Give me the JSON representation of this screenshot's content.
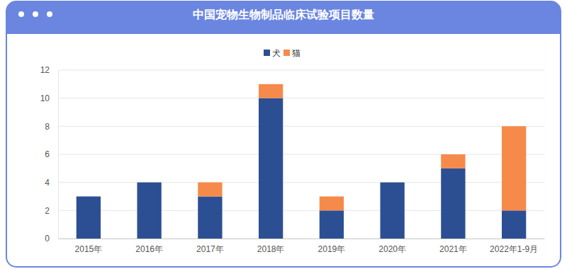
{
  "chart_data": {
    "type": "bar",
    "title": "中国宠物生物制品临床试验项目数量",
    "categories": [
      "2015年",
      "2016年",
      "2017年",
      "2018年",
      "2019年",
      "2020年",
      "2021年",
      "2022年1-9月"
    ],
    "series": [
      {
        "name": "犬",
        "color": "#2c4f93",
        "values": [
          3,
          4,
          3,
          10,
          2,
          4,
          5,
          2
        ]
      },
      {
        "name": "猫",
        "color": "#f58a4a",
        "values": [
          0,
          0,
          1,
          1,
          1,
          0,
          1,
          6
        ]
      }
    ],
    "ylim": [
      0,
      12
    ],
    "yticks": [
      0,
      2,
      4,
      6,
      8,
      10,
      12
    ],
    "grid": true,
    "stacked": true,
    "legend": "top"
  }
}
